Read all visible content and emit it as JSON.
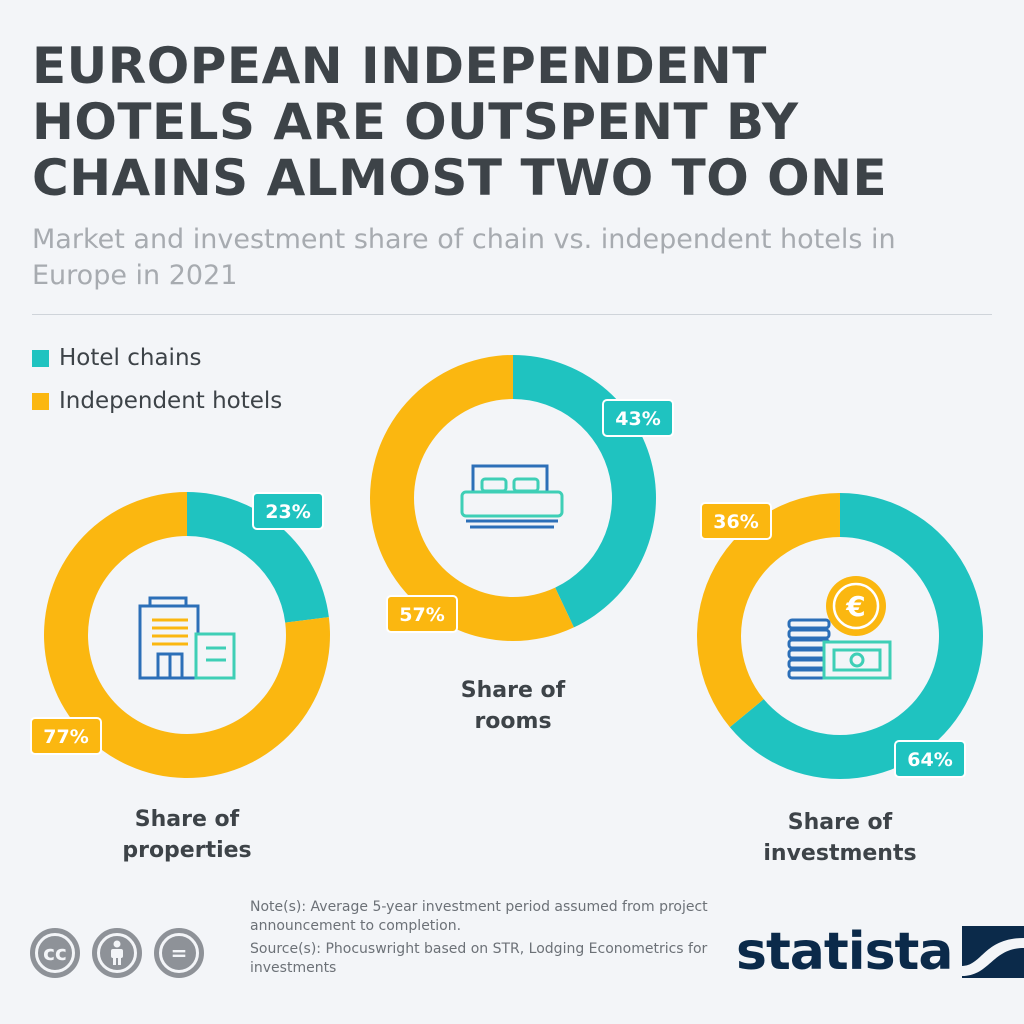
{
  "title": "EUROPEAN INDEPENDENT HOTELS ARE OUTSPENT BY CHAINS ALMOST TWO TO ONE",
  "subtitle": "Market and investment share of chain vs. independent hotels in Europe in 2021",
  "legend": {
    "chains": "Hotel chains",
    "independent": "Independent hotels"
  },
  "colors": {
    "chains": "#1fc3c0",
    "independent": "#fbb710",
    "icon_blue": "#2c6fb8",
    "icon_teal": "#3ecfb6",
    "icon_yellow": "#fbb710"
  },
  "chart_data": [
    {
      "type": "pie",
      "donut": true,
      "title": "Share of properties",
      "label_lines": [
        "Share of",
        "properties"
      ],
      "series": [
        {
          "name": "Hotel chains",
          "value": 23,
          "label": "23%"
        },
        {
          "name": "Independent hotels",
          "value": 77,
          "label": "77%"
        }
      ],
      "icon": "building-icon"
    },
    {
      "type": "pie",
      "donut": true,
      "title": "Share of rooms",
      "label_lines": [
        "Share of",
        "rooms"
      ],
      "series": [
        {
          "name": "Hotel chains",
          "value": 43,
          "label": "43%"
        },
        {
          "name": "Independent hotels",
          "value": 57,
          "label": "57%"
        }
      ],
      "icon": "bed-icon"
    },
    {
      "type": "pie",
      "donut": true,
      "title": "Share of investments",
      "label_lines": [
        "Share of",
        "investments"
      ],
      "series": [
        {
          "name": "Hotel chains",
          "value": 64,
          "label": "64%"
        },
        {
          "name": "Independent hotels",
          "value": 36,
          "label": "36%"
        }
      ],
      "icon": "money-icon"
    }
  ],
  "notes": {
    "note": "Note(s): Average 5-year investment period assumed from project announcement to completion.",
    "source": "Source(s): Phocuswright based on STR, Lodging Econometrics for investments"
  },
  "license_icons": {
    "cc": "cc",
    "by": "",
    "nd": "="
  },
  "brand": "statista"
}
